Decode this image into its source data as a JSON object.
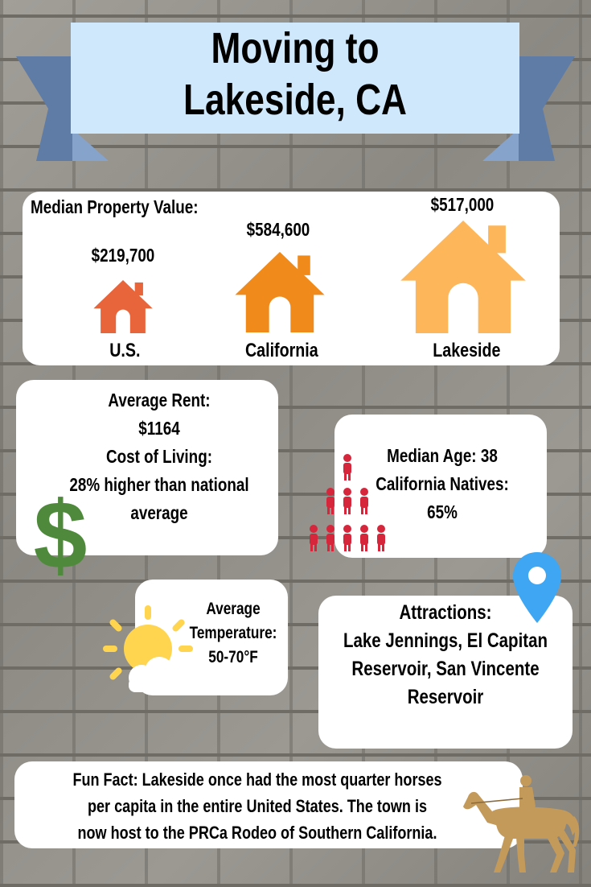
{
  "title": {
    "line1": "Moving to",
    "line2": "Lakeside, CA"
  },
  "property": {
    "heading": "Median Property Value:",
    "items": [
      {
        "label": "U.S.",
        "value": "$219,700",
        "color": "#e8643a"
      },
      {
        "label": "California",
        "value": "$584,600",
        "color": "#f08a1b"
      },
      {
        "label": "Lakeside",
        "value": "$517,000",
        "color": "#fdb65a"
      }
    ]
  },
  "cost": {
    "rent_label": "Average Rent:",
    "rent_value": "$1164",
    "col_label": "Cost of Living:",
    "col_value_line1": "28% higher than national",
    "col_value_line2": "average",
    "icon": "dollar-icon",
    "icon_color": "#4f8a3c"
  },
  "age": {
    "line1": "Median Age: 38",
    "line2": "California Natives:",
    "line3": "65%",
    "icon": "people-pyramid-icon",
    "icon_color": "#d6263b"
  },
  "temperature": {
    "line1": "Average",
    "line2": "Temperature:",
    "line3": "50-70°F",
    "icon": "sun-cloud-icon",
    "icon_color": "#ffd54f"
  },
  "attractions": {
    "heading": "Attractions:",
    "line1": "Lake Jennings, El Capitan",
    "line2": "Reservoir, San Vincente",
    "line3": "Reservoir",
    "icon": "map-pin-icon",
    "icon_color": "#3ea6f2"
  },
  "funfact": {
    "line1": "Fun Fact: Lakeside once had the most quarter horses",
    "line2": "per capita in the entire United States. The town is",
    "line3": "now host to the PRCa Rodeo of Southern California.",
    "icon": "horse-rider-icon",
    "icon_color": "#c49a5a"
  },
  "colors": {
    "banner": "#cfe8fb",
    "ribbon": "#5f7ca6"
  }
}
